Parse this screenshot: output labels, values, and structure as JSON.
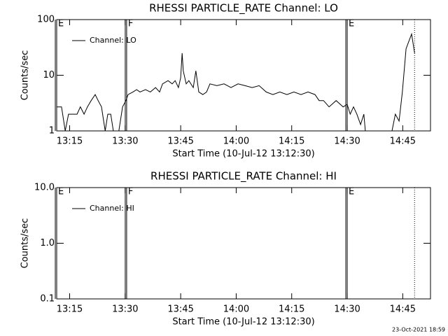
{
  "chart_data": [
    {
      "type": "line",
      "title": "RHESSI PARTICLE_RATE Channel: LO",
      "xlabel": "Start Time (10-Jul-12 13:12:30)",
      "ylabel": "Counts/sec",
      "ylog": true,
      "ylim": [
        1,
        100
      ],
      "yticks": [
        1,
        10,
        100
      ],
      "xlim": [
        791.5,
        892.5
      ],
      "xticks": [
        {
          "value": 795,
          "label": "13:15"
        },
        {
          "value": 810,
          "label": "13:30"
        },
        {
          "value": 825,
          "label": "13:45"
        },
        {
          "value": 840,
          "label": "14:00"
        },
        {
          "value": 855,
          "label": "14:15"
        },
        {
          "value": 870,
          "label": "14:30"
        },
        {
          "value": 885,
          "label": "14:45"
        }
      ],
      "markers": [
        {
          "x": 791.5,
          "label": "E",
          "style": "solid"
        },
        {
          "x": 810.4,
          "label": "F",
          "style": "solid"
        },
        {
          "x": 870.0,
          "label": "E",
          "style": "solid"
        },
        {
          "x": 888.2,
          "style": "dotted"
        }
      ],
      "legend": "upper left",
      "x": [
        791.5,
        792.8,
        793.8,
        794.7,
        797.0,
        797.9,
        798.9,
        799.8,
        800.8,
        801.9,
        802.7,
        803.6,
        804.2,
        804.6,
        805.3,
        806.1,
        806.8,
        808.3,
        809.3,
        810.2,
        810.8,
        812.1,
        813.1,
        814.0,
        815.5,
        816.8,
        818.2,
        819.3,
        820.1,
        821.6,
        822.7,
        823.5,
        824.4,
        825.0,
        825.4,
        825.7,
        826.5,
        827.2,
        828.4,
        829.1,
        829.9,
        831.0,
        832.0,
        832.9,
        834.8,
        836.7,
        838.6,
        840.5,
        842.4,
        844.3,
        846.2,
        848.1,
        849.9,
        851.8,
        853.7,
        855.6,
        857.5,
        859.4,
        861.3,
        862.4,
        863.6,
        865.1,
        867.0,
        868.9,
        870.0,
        870.8,
        871.7,
        872.6,
        873.6,
        874.5,
        874.9,
        882.1,
        883.0,
        884.0,
        884.9,
        885.9,
        887.4,
        888.2
      ],
      "series": [
        {
          "name": "Channel: LO",
          "color": "#000000",
          "values": [
            2.7,
            2.7,
            1,
            2,
            2,
            2.7,
            2,
            2.7,
            3.5,
            4.5,
            3.5,
            2.7,
            1.5,
            1,
            2,
            2,
            1,
            1,
            2.7,
            3.5,
            4.5,
            5,
            5.5,
            5,
            5.5,
            5,
            6,
            5,
            7,
            8,
            7,
            8,
            6,
            9,
            25,
            12,
            7,
            8,
            6,
            12,
            5,
            4.5,
            5,
            7,
            6.5,
            7,
            6,
            7,
            6.5,
            6,
            6.5,
            5,
            4.5,
            5,
            4.5,
            5,
            4.5,
            5,
            4.5,
            3.5,
            3.5,
            2.7,
            3.5,
            2.7,
            3,
            2,
            2.7,
            2,
            1.3,
            2,
            1,
            1,
            2,
            1.5,
            5,
            30,
            55,
            25
          ]
        }
      ]
    },
    {
      "type": "line",
      "title": "RHESSI PARTICLE_RATE Channel: HI",
      "xlabel": "Start Time (10-Jul-12 13:12:30)",
      "ylabel": "Counts/sec",
      "ylog": true,
      "ylim": [
        0.1,
        10
      ],
      "yticks": [
        0.1,
        {
          "value": 1,
          "label": "1.0"
        },
        {
          "value": 10,
          "label": "10.0"
        }
      ],
      "xlim": [
        791.5,
        892.5
      ],
      "xticks": [
        {
          "value": 795,
          "label": "13:15"
        },
        {
          "value": 810,
          "label": "13:30"
        },
        {
          "value": 825,
          "label": "13:45"
        },
        {
          "value": 840,
          "label": "14:00"
        },
        {
          "value": 855,
          "label": "14:15"
        },
        {
          "value": 870,
          "label": "14:30"
        },
        {
          "value": 885,
          "label": "14:45"
        }
      ],
      "markers": [
        {
          "x": 791.5,
          "label": "E",
          "style": "solid"
        },
        {
          "x": 810.4,
          "label": "F",
          "style": "solid"
        },
        {
          "x": 870.0,
          "label": "E",
          "style": "solid"
        },
        {
          "x": 888.2,
          "style": "dotted"
        }
      ],
      "legend": "upper left",
      "series": [
        {
          "name": "Channel: HI",
          "color": "#000000"
        }
      ]
    }
  ],
  "footer": "23-Oct-2021 18:59"
}
